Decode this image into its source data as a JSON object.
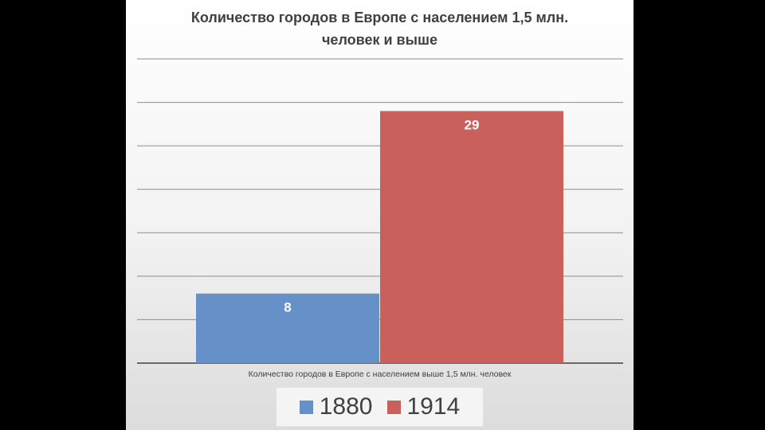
{
  "chart_data": {
    "type": "bar",
    "title_line1": "Количество городов в Европе с населением 1,5 млн.",
    "title_line2": "человек и выше",
    "category_label": "Количество городов в Европе с населением выше 1,5 млн. человек",
    "series": [
      {
        "name": "1880",
        "values": [
          8
        ],
        "color": "#6690c8"
      },
      {
        "name": "1914",
        "values": [
          29
        ],
        "color": "#c9605c"
      }
    ],
    "ylim": [
      0,
      35
    ],
    "y_gridline_step": 5,
    "grid": true,
    "legend_position": "bottom"
  }
}
